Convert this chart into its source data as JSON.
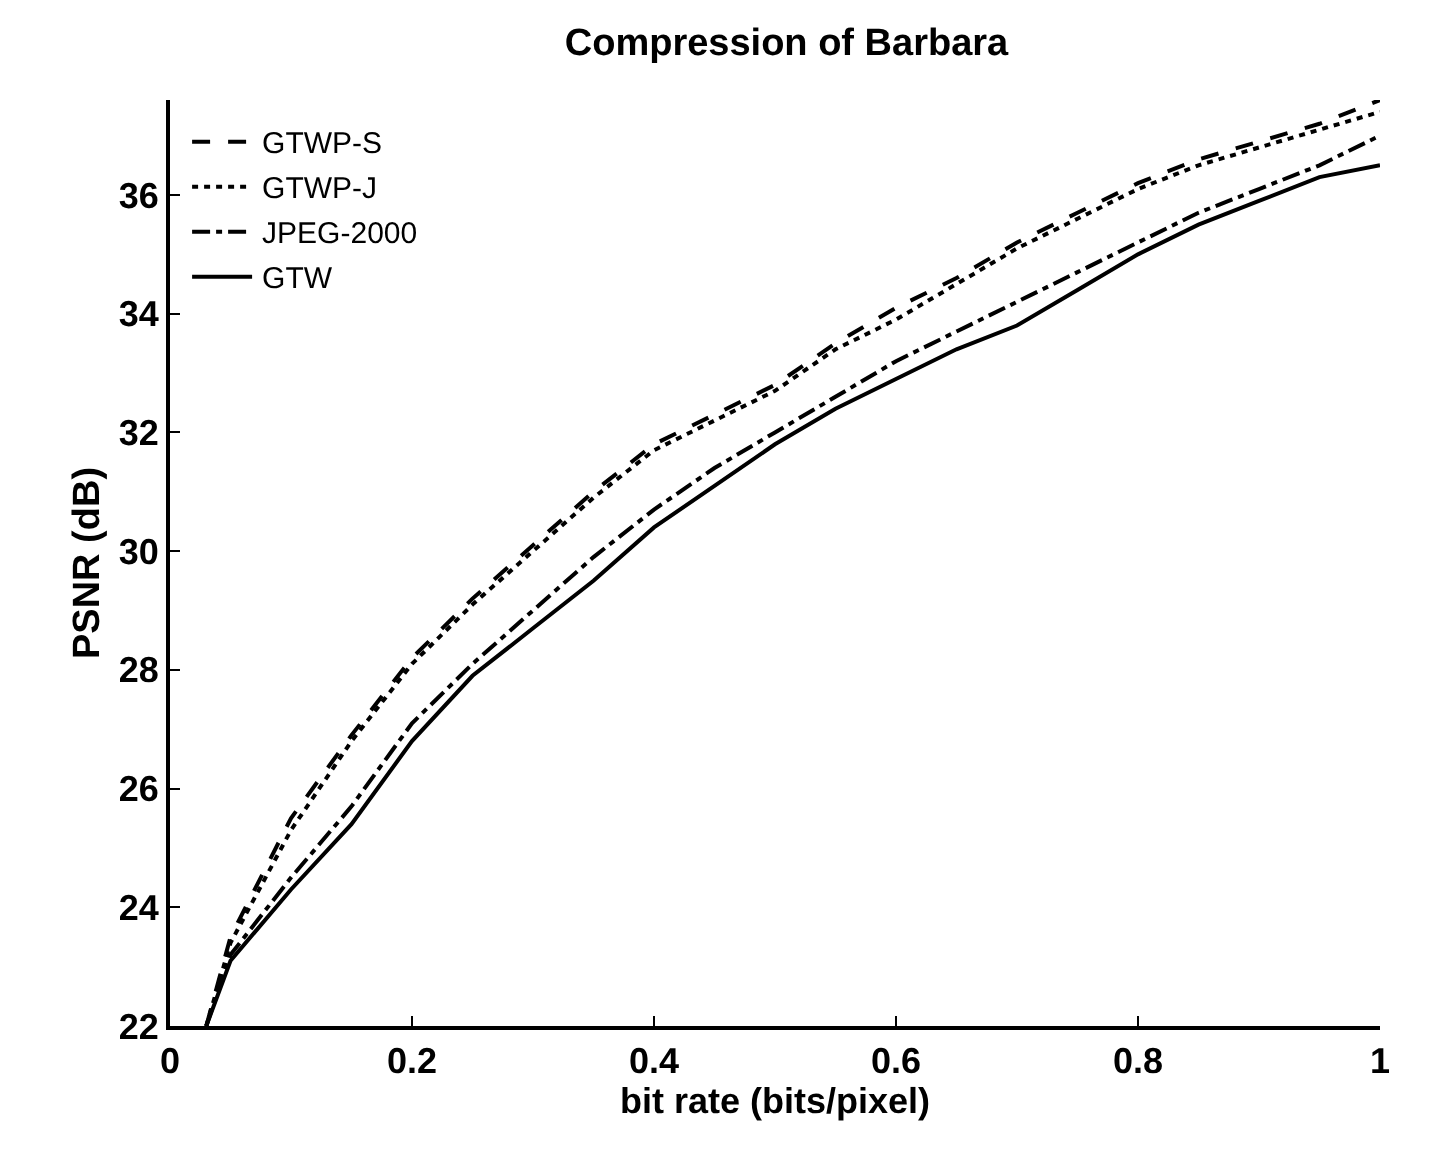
{
  "chart_data": {
    "type": "line",
    "title": "Compression of Barbara",
    "xlabel": "bit rate (bits/pixel)",
    "ylabel": "PSNR (dB)",
    "xlim": [
      0,
      1
    ],
    "xticks": [
      0,
      0.2,
      0.4,
      0.6,
      0.8,
      1
    ],
    "ylim": [
      22,
      37.6
    ],
    "yticks": [
      22,
      24,
      26,
      28,
      30,
      32,
      34,
      36
    ],
    "x": [
      0.03,
      0.05,
      0.1,
      0.15,
      0.2,
      0.25,
      0.3,
      0.35,
      0.4,
      0.45,
      0.5,
      0.55,
      0.6,
      0.65,
      0.7,
      0.75,
      0.8,
      0.85,
      0.9,
      0.95,
      1
    ],
    "grid": false,
    "legend": "top left",
    "marker": "none",
    "series": [
      {
        "name": "GTWP-S",
        "color": "#000000",
        "line_style": "dashed",
        "values": [
          22,
          23.5,
          25.5,
          26.9,
          28.2,
          29.2,
          30.1,
          31,
          31.8,
          32.3,
          32.8,
          33.5,
          34.1,
          34.6,
          35.2,
          35.7,
          36.2,
          36.6,
          36.9,
          37.2,
          37.6
        ]
      },
      {
        "name": "GTWP-J",
        "color": "#000000",
        "line_style": "dotted",
        "values": [
          22,
          23.4,
          25.3,
          26.8,
          28.1,
          29.1,
          30,
          30.9,
          31.7,
          32.2,
          32.7,
          33.4,
          33.9,
          34.5,
          35.1,
          35.6,
          36.1,
          36.5,
          36.8,
          37.1,
          37.4
        ]
      },
      {
        "name": "JPEG-2000",
        "color": "#000000",
        "line_style": "dashdot",
        "values": [
          22,
          23.2,
          24.5,
          25.7,
          27.1,
          28.1,
          29,
          29.9,
          30.7,
          31.4,
          32,
          32.6,
          33.2,
          33.7,
          34.2,
          34.7,
          35.2,
          35.7,
          36.1,
          36.5,
          37
        ]
      },
      {
        "name": "GTW",
        "color": "#000000",
        "line_style": "solid",
        "values": [
          22,
          23.1,
          24.3,
          25.4,
          26.8,
          27.9,
          28.7,
          29.5,
          30.4,
          31.1,
          31.8,
          32.4,
          32.9,
          33.4,
          33.8,
          34.4,
          35,
          35.5,
          35.9,
          36.3,
          36.5
        ]
      }
    ]
  }
}
